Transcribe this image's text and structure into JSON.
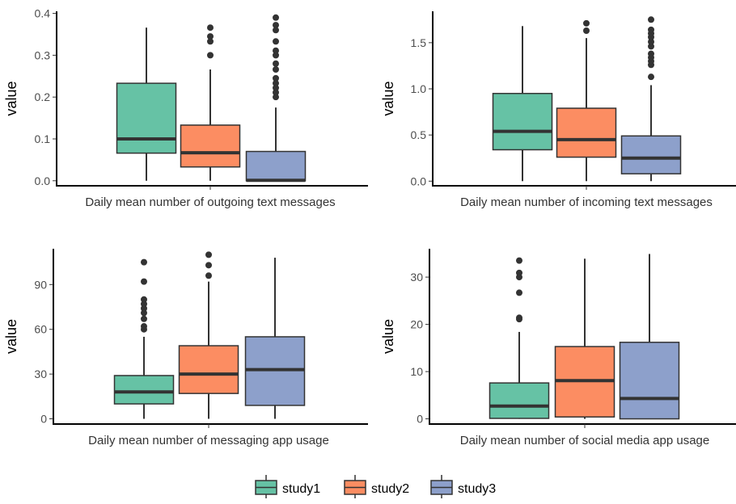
{
  "colors": {
    "study1": "#66c2a5",
    "study2": "#fc8d62",
    "study3": "#8da0cb",
    "line": "#333333"
  },
  "legend": {
    "placement": "bottom",
    "items": [
      "study1",
      "study2",
      "study3"
    ]
  },
  "chart_data": [
    {
      "type": "box",
      "xlabel": "Daily mean number of outgoing text messages",
      "ylabel": "value",
      "ylim": [
        -0.012,
        0.405
      ],
      "yticks": [
        0.0,
        0.1,
        0.2,
        0.3,
        0.4
      ],
      "ytick_labels": [
        "0.0",
        "0.1",
        "0.2",
        "0.3",
        "0.4"
      ],
      "series": [
        {
          "name": "study1",
          "min": 0.0,
          "q1": 0.066,
          "median": 0.1,
          "q3": 0.233,
          "max": 0.366,
          "outliers": []
        },
        {
          "name": "study2",
          "min": 0.0,
          "q1": 0.033,
          "median": 0.067,
          "q3": 0.133,
          "max": 0.266,
          "outliers": [
            0.3,
            0.333,
            0.345,
            0.366
          ]
        },
        {
          "name": "study3",
          "min": 0.0,
          "q1": 0.0,
          "median": 0.001,
          "q3": 0.07,
          "max": 0.175,
          "outliers": [
            0.2,
            0.211,
            0.222,
            0.233,
            0.245,
            0.266,
            0.28,
            0.3,
            0.311,
            0.333,
            0.36,
            0.372,
            0.39
          ]
        }
      ]
    },
    {
      "type": "box",
      "xlabel": "Daily mean number of incoming text messages",
      "ylabel": "value",
      "ylim": [
        -0.05,
        1.84
      ],
      "yticks": [
        0.0,
        0.5,
        1.0,
        1.5
      ],
      "ytick_labels": [
        "0.0",
        "0.5",
        "1.0",
        "1.5"
      ],
      "series": [
        {
          "name": "study1",
          "min": 0.0,
          "q1": 0.34,
          "median": 0.54,
          "q3": 0.95,
          "max": 1.68,
          "outliers": []
        },
        {
          "name": "study2",
          "min": 0.0,
          "q1": 0.26,
          "median": 0.45,
          "q3": 0.79,
          "max": 1.55,
          "outliers": [
            1.63,
            1.71
          ]
        },
        {
          "name": "study3",
          "min": 0.0,
          "q1": 0.08,
          "median": 0.25,
          "q3": 0.49,
          "max": 1.04,
          "outliers": [
            1.13,
            1.26,
            1.3,
            1.34,
            1.38,
            1.46,
            1.51,
            1.56,
            1.6,
            1.64,
            1.75
          ]
        }
      ]
    },
    {
      "type": "box",
      "xlabel": "Daily mean number of messaging app usage",
      "ylabel": "value",
      "ylim": [
        -3.5,
        114
      ],
      "yticks": [
        0,
        30,
        60,
        90
      ],
      "ytick_labels": [
        "0",
        "30",
        "60",
        "90"
      ],
      "series": [
        {
          "name": "study1",
          "min": 0,
          "q1": 10,
          "median": 18,
          "q3": 29,
          "max": 55,
          "outliers": [
            60,
            62,
            67,
            71,
            74,
            77,
            80,
            92,
            105
          ]
        },
        {
          "name": "study2",
          "min": 0,
          "q1": 17,
          "median": 30,
          "q3": 49,
          "max": 92,
          "outliers": [
            96,
            103,
            110
          ]
        },
        {
          "name": "study3",
          "min": 0,
          "q1": 9,
          "median": 33,
          "q3": 55,
          "max": 108,
          "outliers": []
        }
      ]
    },
    {
      "type": "box",
      "xlabel": "Daily mean number of social media app usage",
      "ylabel": "value",
      "ylim": [
        -1.1,
        36
      ],
      "yticks": [
        0,
        10,
        20,
        30
      ],
      "ytick_labels": [
        "0",
        "10",
        "20",
        "30"
      ],
      "series": [
        {
          "name": "study1",
          "min": 0,
          "q1": 0.1,
          "median": 2.7,
          "q3": 7.6,
          "max": 18.4,
          "outliers": [
            21.1,
            21.4,
            26.7,
            30.0,
            30.9,
            33.5
          ]
        },
        {
          "name": "study2",
          "min": 0,
          "q1": 0.4,
          "median": 8.1,
          "q3": 15.3,
          "max": 33.9,
          "outliers": []
        },
        {
          "name": "study3",
          "min": 0,
          "q1": 0.0,
          "median": 4.3,
          "q3": 16.2,
          "max": 34.9,
          "outliers": []
        }
      ]
    }
  ]
}
